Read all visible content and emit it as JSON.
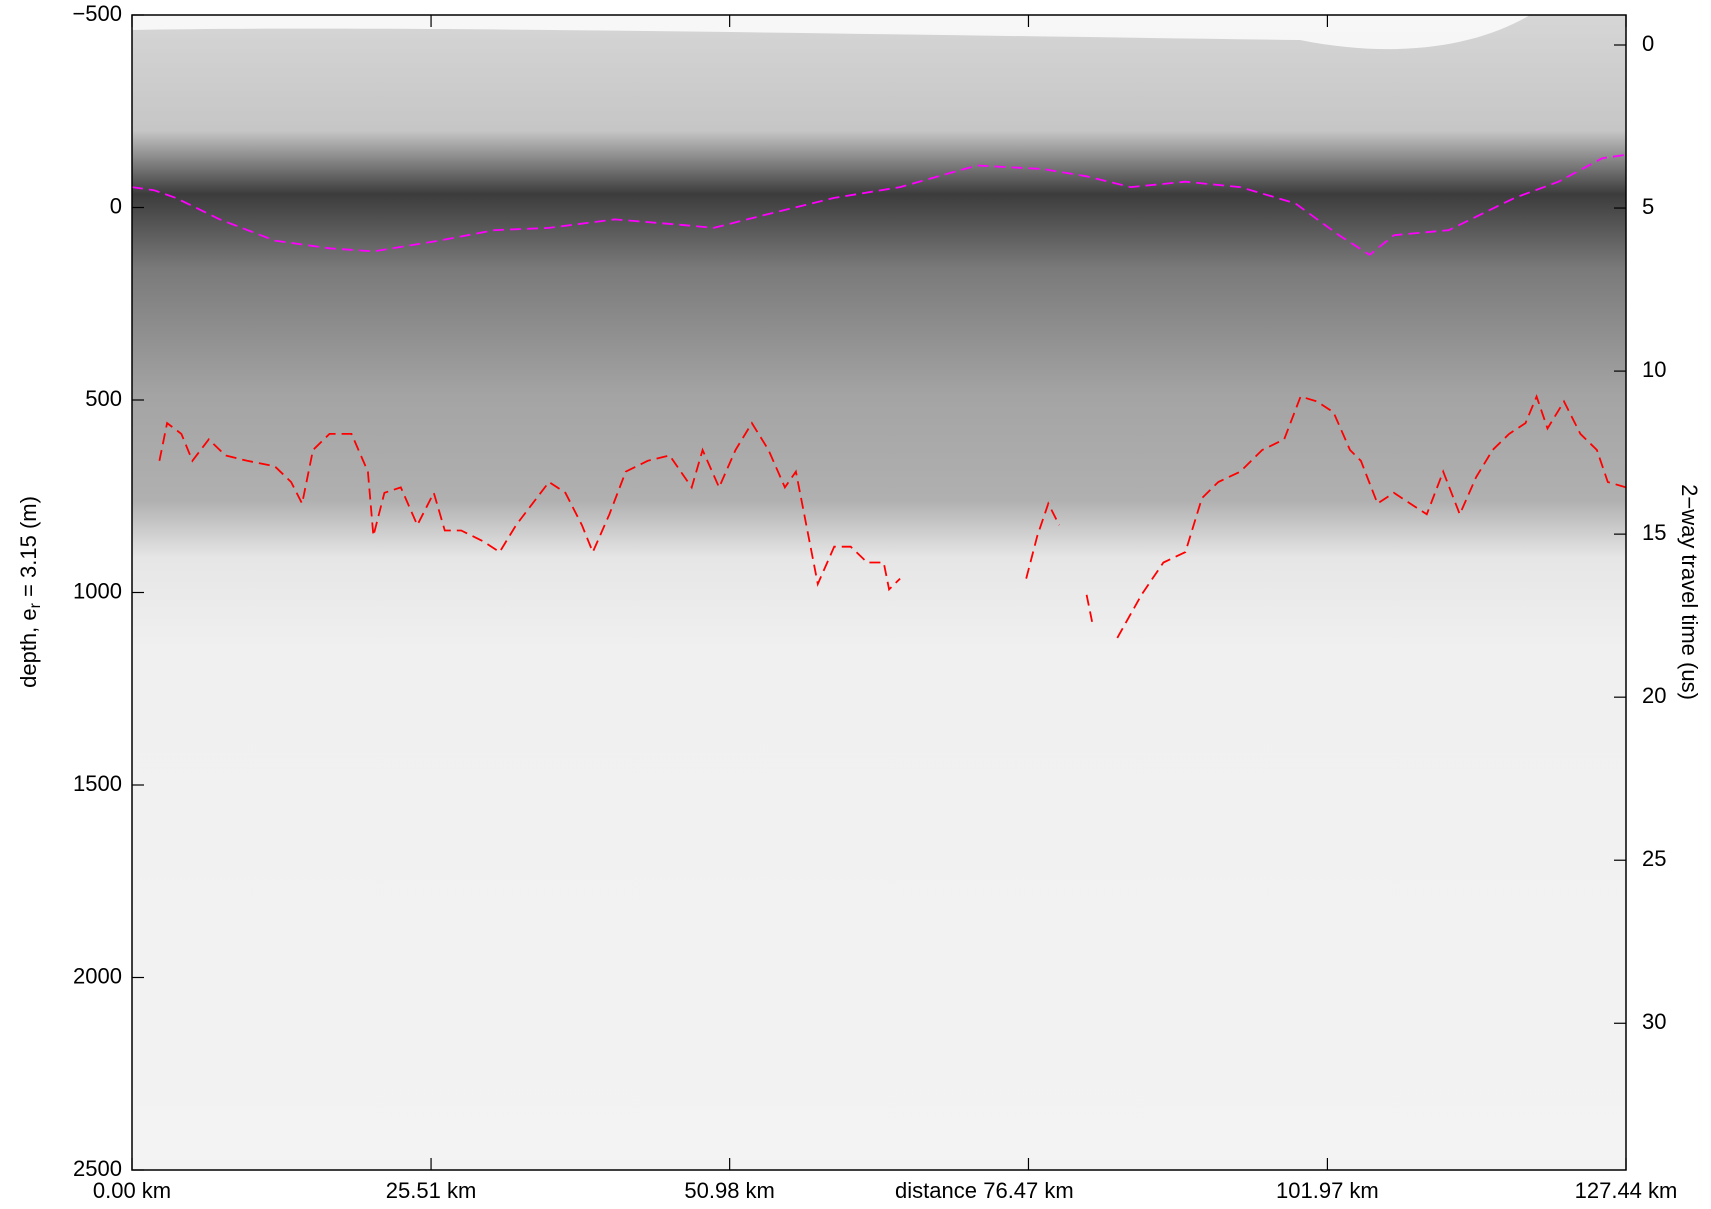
{
  "chart_data": {
    "type": "line",
    "xlabel": "distance",
    "ylabel": {
      "text": "depth, e",
      "subscript": "r",
      "rest": " = 3.15 (m)"
    },
    "y2label": "2−way travel time (us)",
    "xlim": [
      0,
      127.44
    ],
    "xticks": [
      {
        "value": 0,
        "label": "0.00 km"
      },
      {
        "value": 25.51,
        "label": "25.51 km"
      },
      {
        "value": 50.98,
        "label": "50.98 km"
      },
      {
        "value": 76.47,
        "label": "76.47 km"
      },
      {
        "value": 101.97,
        "label": "101.97 km"
      },
      {
        "value": 127.44,
        "label": "127.44 km"
      }
    ],
    "ylim": [
      -500,
      2500
    ],
    "y_reversed": true,
    "yticks": [
      {
        "value": -500,
        "label": "−500"
      },
      0,
      500,
      1000,
      1500,
      2000,
      2500
    ],
    "y2lim": [
      -0.92,
      34.5
    ],
    "y2ticks": [
      0,
      5,
      10,
      15,
      20,
      25,
      30
    ],
    "series": [
      {
        "color": "#ff00ff",
        "x": [
          0,
          1.87,
          3.74,
          7.49,
          12.17,
          16.85,
          20.59,
          26.21,
          30.89,
          35.57,
          41.18,
          46.8,
          49.61,
          54.29,
          59.9,
          65.52,
          72.07,
          77.69,
          81.43,
          85.18,
          89.86,
          94.54,
          99.22,
          102.96,
          105.58,
          107.64,
          112.32,
          117.94,
          121.68,
          125.42,
          127.44
        ],
        "values": [
          -53,
          -45,
          -25,
          31,
          86,
          106,
          114,
          86,
          59,
          53,
          31,
          45,
          53,
          17,
          -25,
          -53,
          -109,
          -100,
          -81,
          -53,
          -67,
          -53,
          -11,
          72,
          123,
          72,
          59,
          -25,
          -67,
          -128,
          -137
        ]
      },
      {
        "color": "#ff0000",
        "x": [
          2.34,
          2.99,
          4.21,
          5.15,
          6.55,
          7.96,
          9.83,
          12.17,
          13.57,
          14.51,
          15.44,
          16.85,
          18.72,
          20.12,
          20.59,
          21.53,
          22.93,
          24.34,
          25.74,
          26.68,
          28.08,
          29.95,
          31.36,
          32.76,
          34.16,
          35.57,
          36.97,
          38.38,
          39.31,
          40.72,
          42.12,
          43.99,
          45.86,
          47.74,
          48.67,
          50.08,
          51.48,
          52.88,
          54.29,
          55.69,
          56.63,
          58.5,
          59.9,
          61.31,
          62.71,
          64.12,
          64.58,
          65.52,
          null,
          76.28,
          77.22,
          78.16,
          79.09,
          null,
          81.43,
          81.9,
          null,
          84.05,
          86.11,
          87.98,
          89.86,
          91.26,
          92.66,
          94.54,
          96.41,
          98.28,
          99.68,
          101.09,
          102.49,
          103.9,
          104.83,
          106.24,
          107.64,
          109.04,
          110.45,
          111.85,
          113.26,
          114.66,
          116.06,
          117.47,
          118.87,
          119.81,
          120.74,
          122.15,
          123.55,
          124.96,
          125.89,
          127.44
        ],
        "values": [
          658,
          560,
          588,
          658,
          602,
          644,
          658,
          672,
          713,
          769,
          630,
          588,
          588,
          686,
          853,
          741,
          727,
          825,
          741,
          839,
          839,
          867,
          895,
          825,
          769,
          713,
          741,
          825,
          895,
          797,
          686,
          658,
          644,
          727,
          630,
          727,
          630,
          560,
          630,
          727,
          686,
          978,
          881,
          881,
          922,
          922,
          992,
          964,
          null,
          964,
          853,
          769,
          825,
          null,
          1006,
          1076,
          null,
          1118,
          1006,
          922,
          895,
          755,
          713,
          686,
          630,
          602,
          491,
          504,
          532,
          630,
          658,
          769,
          741,
          769,
          797,
          686,
          797,
          700,
          630,
          588,
          560,
          491,
          574,
          504,
          588,
          630,
          713,
          727
        ]
      }
    ]
  }
}
